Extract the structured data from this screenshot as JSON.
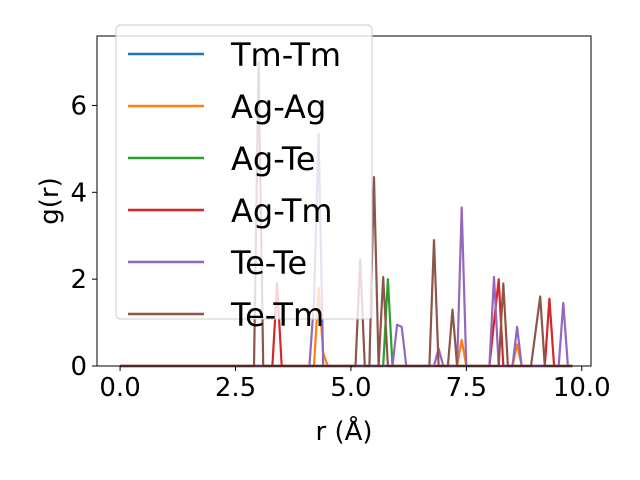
{
  "chart_data": {
    "type": "line",
    "xlabel": "r (Å)",
    "ylabel": "g(r)",
    "xlim": [
      -0.5,
      10.2
    ],
    "ylim": [
      0,
      7.6
    ],
    "xticks": [
      "0.0",
      "2.5",
      "5.0",
      "7.5",
      "10.0"
    ],
    "xtick_values": [
      0,
      2.5,
      5,
      7.5,
      10
    ],
    "yticks": [
      "0",
      "2",
      "4",
      "6"
    ],
    "ytick_values": [
      0,
      2,
      4,
      6
    ],
    "legend_position": "top-left",
    "series": [
      {
        "name": "Tm-Tm",
        "color": "#1f77b4",
        "x": [
          0,
          9.8
        ],
        "y": [
          0,
          0
        ]
      },
      {
        "name": "Ag-Ag",
        "color": "#ff7f0e",
        "x": [
          0,
          4.2,
          4.3,
          4.4,
          4.5,
          7.3,
          7.4,
          7.5,
          8.5,
          8.6,
          8.7,
          9.8
        ],
        "y": [
          0,
          0,
          1.8,
          0.3,
          0,
          0,
          0.6,
          0,
          0,
          0.5,
          0,
          0
        ]
      },
      {
        "name": "Ag-Te",
        "color": "#2ca02c",
        "x": [
          0,
          5.7,
          5.8,
          5.9,
          9.8
        ],
        "y": [
          0,
          0,
          2.0,
          0,
          0
        ]
      },
      {
        "name": "Ag-Tm",
        "color": "#d62728",
        "x": [
          0,
          3.3,
          3.4,
          3.5,
          8.0,
          8.1,
          8.2,
          8.3,
          9.2,
          9.3,
          9.4,
          9.8
        ],
        "y": [
          0,
          0,
          1.9,
          0,
          0,
          1.0,
          2.0,
          0,
          0,
          1.55,
          0,
          0
        ]
      },
      {
        "name": "Te-Te",
        "color": "#9467bd",
        "x": [
          0,
          4.1,
          4.2,
          4.3,
          4.4,
          5.9,
          6.0,
          6.1,
          6.2,
          6.8,
          6.9,
          7.0,
          7.3,
          7.4,
          7.5,
          8.0,
          8.1,
          8.2,
          8.5,
          8.6,
          8.7,
          9.5,
          9.6,
          9.7,
          9.8
        ],
        "y": [
          0,
          0,
          1.5,
          5.35,
          0,
          0,
          0.95,
          0.9,
          0,
          0,
          0.4,
          0,
          0,
          3.65,
          0,
          0,
          2.05,
          0,
          0,
          0.9,
          0,
          0,
          1.45,
          0,
          0
        ]
      },
      {
        "name": "Te-Tm",
        "color": "#8c564b",
        "x": [
          0,
          2.9,
          3.0,
          3.1,
          5.1,
          5.2,
          5.3,
          5.4,
          5.5,
          5.6,
          5.7,
          5.8,
          6.7,
          6.8,
          6.9,
          7.1,
          7.2,
          7.3,
          8.2,
          8.3,
          8.4,
          8.9,
          9.0,
          9.1,
          9.2,
          9.8
        ],
        "y": [
          0,
          0,
          7.0,
          0,
          0,
          2.45,
          0,
          0,
          4.35,
          0,
          2.05,
          0,
          0,
          2.9,
          0,
          0,
          1.3,
          0,
          0,
          1.9,
          0,
          0,
          0.8,
          1.6,
          0,
          0
        ]
      }
    ]
  }
}
